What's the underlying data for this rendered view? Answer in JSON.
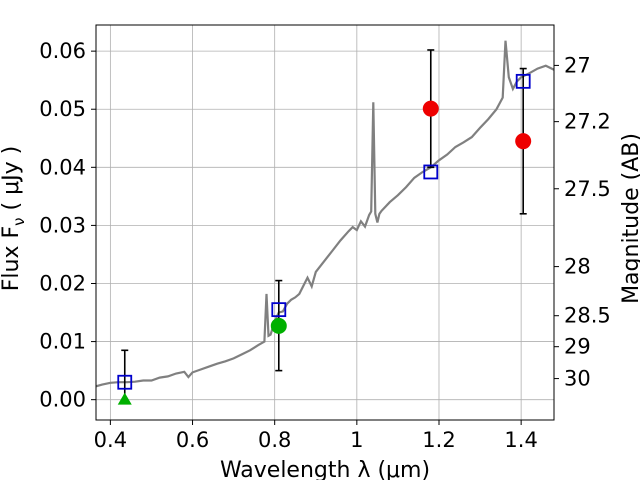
{
  "chart_data": {
    "type": "scatter",
    "xlabel": "Wavelength  λ (μm)",
    "ylabel": "Flux  F",
    "ylabel_sub": "ν",
    "ylabel_unit": "( μJy )",
    "y2label": "Magnitude (AB)",
    "xlim": [
      0.365,
      1.48
    ],
    "ylim": [
      -0.0035,
      0.0645
    ],
    "grid": true,
    "x_ticks": [
      {
        "value": 0.4,
        "label": "0.4"
      },
      {
        "value": 0.6,
        "label": "0.6"
      },
      {
        "value": 0.8,
        "label": "0.8"
      },
      {
        "value": 1.0,
        "label": "1"
      },
      {
        "value": 1.2,
        "label": "1.2"
      },
      {
        "value": 1.4,
        "label": "1.4"
      }
    ],
    "y_ticks": [
      {
        "value": 0.0,
        "label": "0.00"
      },
      {
        "value": 0.01,
        "label": "0.01"
      },
      {
        "value": 0.02,
        "label": "0.02"
      },
      {
        "value": 0.03,
        "label": "0.03"
      },
      {
        "value": 0.04,
        "label": "0.04"
      },
      {
        "value": 0.05,
        "label": "0.05"
      },
      {
        "value": 0.06,
        "label": "0.06"
      }
    ],
    "y2_ticks": [
      {
        "mag": 27,
        "label": "27"
      },
      {
        "mag": 27.2,
        "label": "27.2"
      },
      {
        "mag": 27.5,
        "label": "27.5"
      },
      {
        "mag": 28,
        "label": "28"
      },
      {
        "mag": 28.5,
        "label": "28.5"
      },
      {
        "mag": 29,
        "label": "29"
      },
      {
        "mag": 30,
        "label": "30"
      }
    ],
    "spectrum": {
      "color": "#808080",
      "x": [
        0.365,
        0.38,
        0.4,
        0.42,
        0.44,
        0.46,
        0.48,
        0.5,
        0.52,
        0.54,
        0.56,
        0.58,
        0.59,
        0.6,
        0.62,
        0.64,
        0.66,
        0.68,
        0.7,
        0.72,
        0.74,
        0.76,
        0.775,
        0.78,
        0.785,
        0.79,
        0.8,
        0.81,
        0.82,
        0.83,
        0.84,
        0.85,
        0.86,
        0.87,
        0.88,
        0.89,
        0.9,
        0.92,
        0.94,
        0.96,
        0.98,
        0.99,
        1.0,
        1.01,
        1.02,
        1.03,
        1.035,
        1.04,
        1.045,
        1.05,
        1.055,
        1.06,
        1.08,
        1.1,
        1.12,
        1.14,
        1.16,
        1.18,
        1.2,
        1.22,
        1.24,
        1.26,
        1.28,
        1.3,
        1.32,
        1.34,
        1.355,
        1.362,
        1.37,
        1.38,
        1.39,
        1.4,
        1.42,
        1.44,
        1.46,
        1.48
      ],
      "y": [
        0.0023,
        0.0026,
        0.0029,
        0.003,
        0.003,
        0.0031,
        0.0033,
        0.0033,
        0.0038,
        0.004,
        0.0045,
        0.0048,
        0.0039,
        0.0047,
        0.0052,
        0.0057,
        0.0062,
        0.0066,
        0.0071,
        0.0078,
        0.0085,
        0.0094,
        0.01,
        0.0182,
        0.011,
        0.0112,
        0.0135,
        0.015,
        0.0152,
        0.0165,
        0.0172,
        0.0176,
        0.0182,
        0.0196,
        0.021,
        0.0195,
        0.022,
        0.0238,
        0.0256,
        0.0274,
        0.029,
        0.0297,
        0.0292,
        0.0307,
        0.0298,
        0.0318,
        0.0324,
        0.0512,
        0.032,
        0.0305,
        0.032,
        0.0325,
        0.034,
        0.0352,
        0.0366,
        0.0382,
        0.0392,
        0.04,
        0.0412,
        0.0422,
        0.0435,
        0.0443,
        0.0452,
        0.0468,
        0.0483,
        0.05,
        0.052,
        0.0618,
        0.0555,
        0.0535,
        0.0548,
        0.0555,
        0.0562,
        0.057,
        0.0575,
        0.0568
      ]
    },
    "model_points": {
      "marker": "open-square",
      "color": "#0000cc",
      "x": [
        0.435,
        0.81,
        1.18,
        1.405
      ],
      "y": [
        0.003,
        0.0155,
        0.0392,
        0.0548
      ]
    },
    "observed_points": [
      {
        "x": 0.435,
        "y": 0.0,
        "err_low": 0.0,
        "err_high": 0.0085,
        "marker": "triangle",
        "color": "#00b000"
      },
      {
        "x": 0.81,
        "y": 0.0127,
        "err_low": 0.005,
        "err_high": 0.0205,
        "marker": "circle",
        "color": "#00b000"
      },
      {
        "x": 1.18,
        "y": 0.0501,
        "err_low": 0.04,
        "err_high": 0.0602,
        "marker": "circle",
        "color": "#ee0000"
      },
      {
        "x": 1.405,
        "y": 0.0445,
        "err_low": 0.032,
        "err_high": 0.057,
        "marker": "circle",
        "color": "#ee0000"
      }
    ]
  }
}
